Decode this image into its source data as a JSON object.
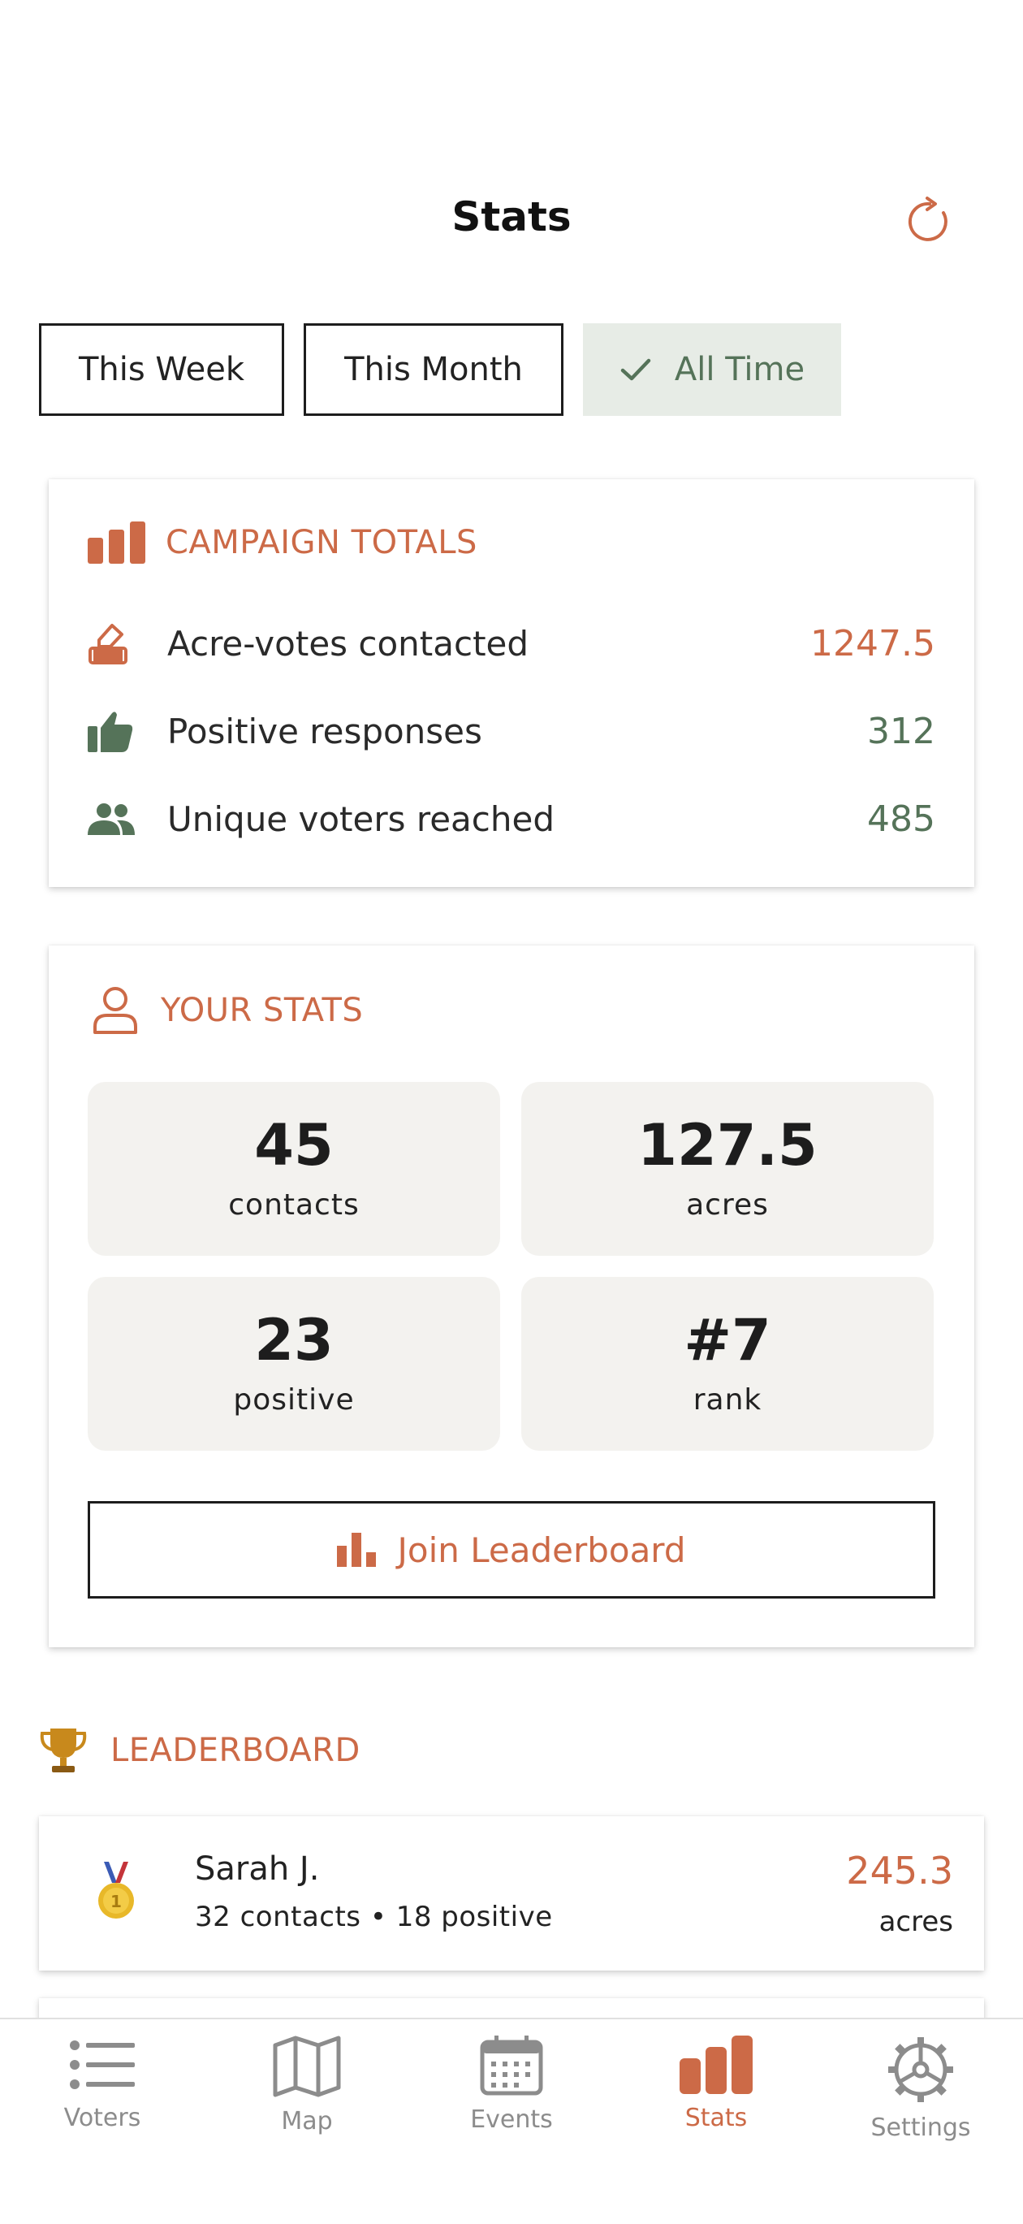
{
  "header": {
    "title": "Stats"
  },
  "filters": [
    {
      "label": "This Week",
      "selected": false
    },
    {
      "label": "This Month",
      "selected": false
    },
    {
      "label": "All Time",
      "selected": true
    }
  ],
  "campaign": {
    "heading": "CAMPAIGN TOTALS",
    "rows": [
      {
        "icon": "ballot-icon",
        "label": "Acre-votes contacted",
        "value": "1247.5"
      },
      {
        "icon": "thumbs-up-icon",
        "label": "Positive responses",
        "value": "312"
      },
      {
        "icon": "people-icon",
        "label": "Unique voters reached",
        "value": "485"
      }
    ]
  },
  "your_stats": {
    "heading": "YOUR STATS",
    "boxes": [
      {
        "value": "45",
        "label": "contacts"
      },
      {
        "value": "127.5",
        "label": "acres"
      },
      {
        "value": "23",
        "label": "positive"
      },
      {
        "value": "#7",
        "label": "rank"
      }
    ],
    "join_label": "Join Leaderboard"
  },
  "leaderboard": {
    "heading": "LEADERBOARD",
    "entries": [
      {
        "name": "Sarah J.",
        "detail": "32 contacts • 18 positive",
        "value": "245.3",
        "unit": "acres",
        "medal": "gold-medal-icon"
      }
    ]
  },
  "nav": [
    {
      "label": "Voters",
      "icon": "list-icon",
      "active": false
    },
    {
      "label": "Map",
      "icon": "map-icon",
      "active": false
    },
    {
      "label": "Events",
      "icon": "calendar-icon",
      "active": false
    },
    {
      "label": "Stats",
      "icon": "bar-chart-icon",
      "active": true
    },
    {
      "label": "Settings",
      "icon": "gear-icon",
      "active": false
    }
  ],
  "colors": {
    "accent": "#cc6a47",
    "positive": "#557359",
    "selected_chip": "#e7ece6"
  }
}
